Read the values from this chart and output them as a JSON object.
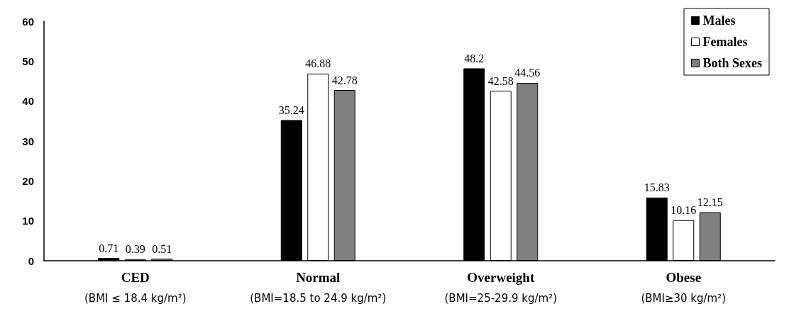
{
  "chart_data": {
    "type": "bar",
    "categories": [
      "CED\n(BMI ≤ 18.4 kg/m²)",
      "Normal\n(BMI=18.5 to 24.9 kg/m²)",
      "Overweight\n(BMI=25-29.9 kg/m²)",
      "Obese\n(BMI≥30 kg/m²)"
    ],
    "series": [
      {
        "name": "Males",
        "color": "#000000",
        "values": [
          0.71,
          35.24,
          48.2,
          15.83
        ]
      },
      {
        "name": "Females",
        "color": "#ffffff",
        "values": [
          0.39,
          46.88,
          42.58,
          10.16
        ]
      },
      {
        "name": "Both Sexes",
        "color": "#808080",
        "values": [
          0.51,
          42.78,
          44.56,
          12.15
        ]
      }
    ],
    "ylim": [
      0,
      60
    ],
    "yticks": [
      0,
      10,
      20,
      30,
      40,
      50,
      60
    ],
    "data_labels": true,
    "grid": false,
    "legend": "top right"
  }
}
